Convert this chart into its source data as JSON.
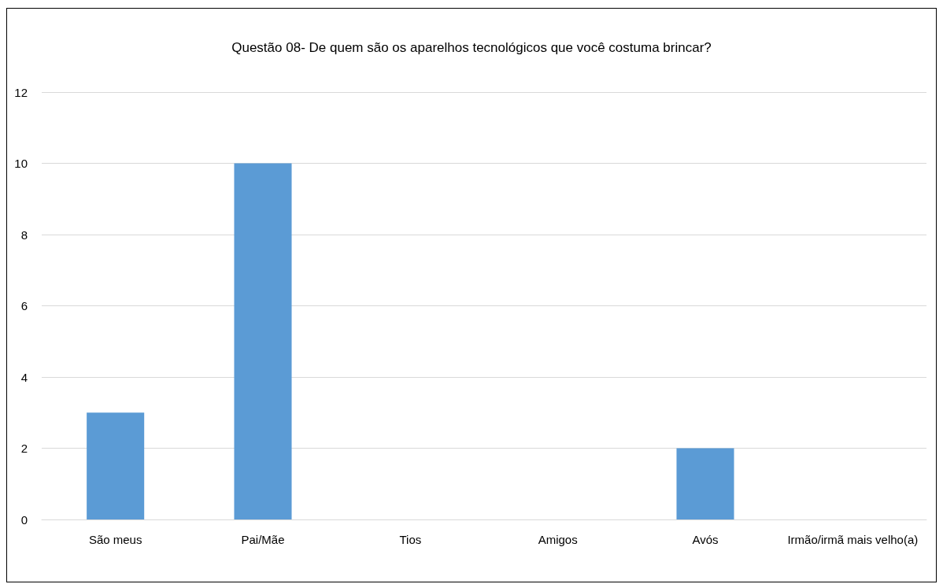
{
  "chart_data": {
    "type": "bar",
    "title": "Questão 08- De quem são os aparelhos tecnológicos que você costuma brincar?",
    "categories": [
      "São meus",
      "Pai/Mãe",
      "Tios",
      "Amigos",
      "Avós",
      "Irmão/irmã mais velho(a)"
    ],
    "values": [
      3,
      10,
      0,
      0,
      2,
      0
    ],
    "color": "#5b9bd5",
    "ylim": [
      0,
      12
    ],
    "yticks": [
      0,
      2,
      4,
      6,
      8,
      10,
      12
    ],
    "grid": "y"
  }
}
